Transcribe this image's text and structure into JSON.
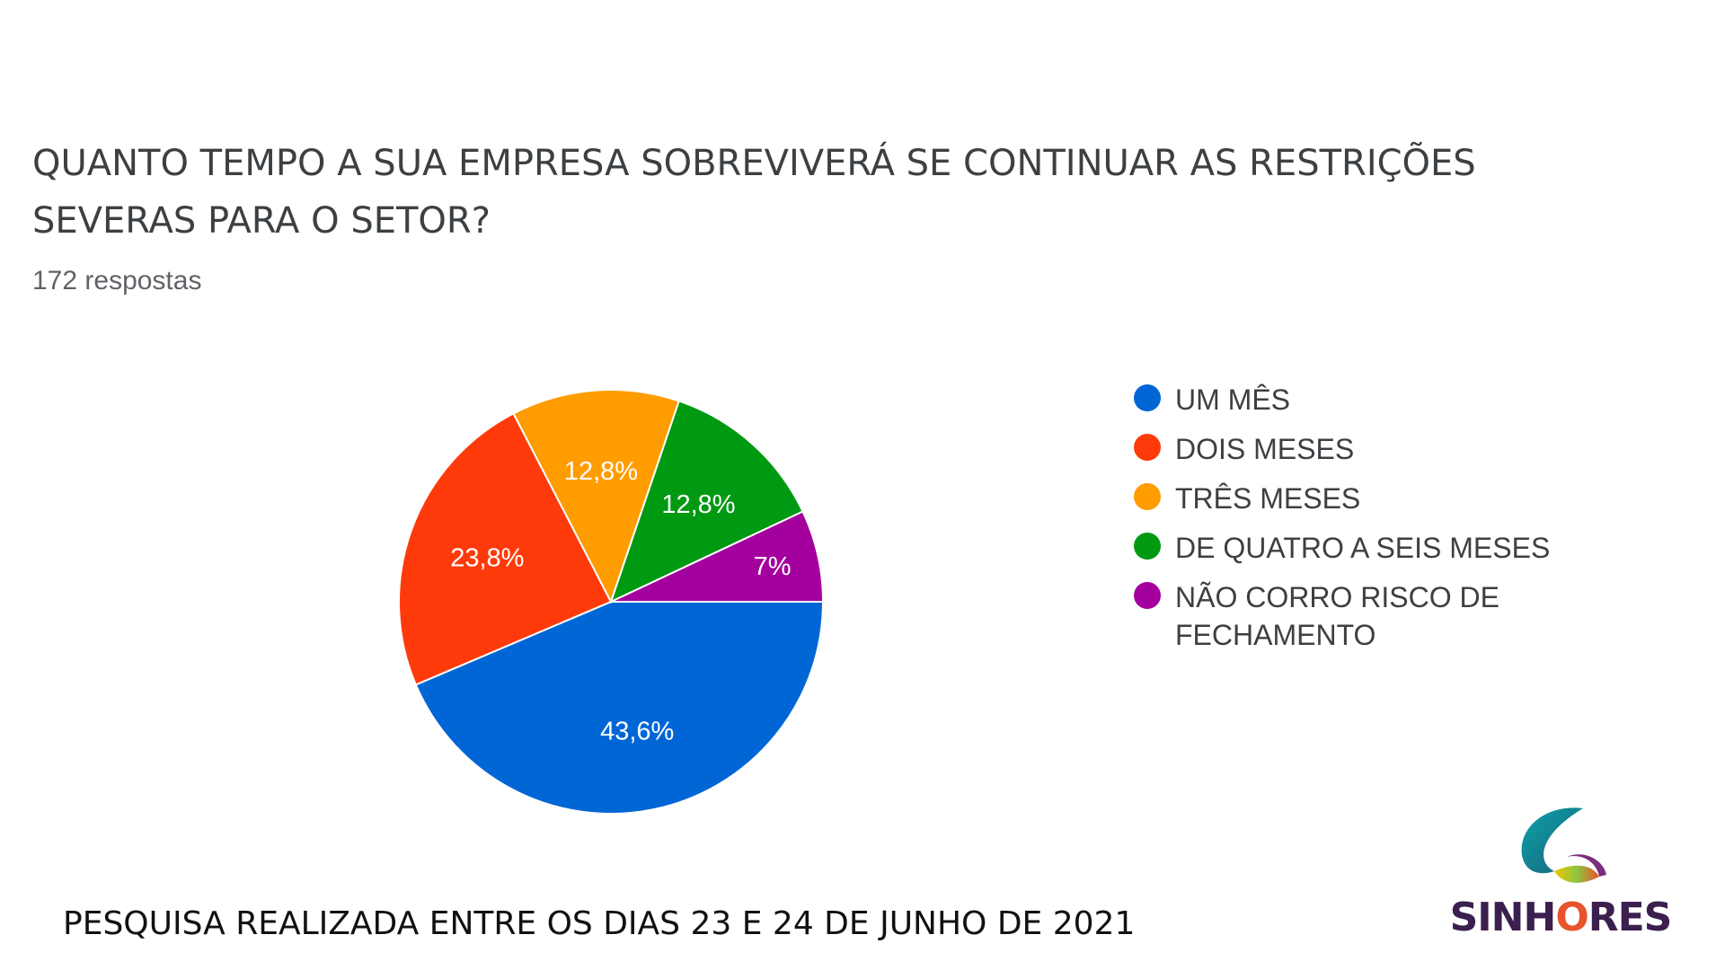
{
  "title": "QUANTO TEMPO A SUA EMPRESA SOBREVIVERÁ SE CONTINUAR AS RESTRIÇÕES SEVERAS PARA O SETOR?",
  "responses_label": "172 respostas",
  "footer": "PESQUISA REALIZADA ENTRE OS DIAS 23 E 24 DE JUNHO DE 2021",
  "logo": {
    "name": "SINHORES"
  },
  "chart_data": {
    "type": "pie",
    "title": "QUANTO TEMPO A SUA EMPRESA SOBREVIVERÁ SE CONTINUAR AS RESTRIÇÕES SEVERAS PARA O SETOR?",
    "slices": [
      {
        "label": "UM MÊS",
        "value": 43.6,
        "display": "43,6%",
        "color": "#0066d6"
      },
      {
        "label": "DOIS MESES",
        "value": 23.8,
        "display": "23,8%",
        "color": "#ff3a0a"
      },
      {
        "label": "TRÊS MESES",
        "value": 12.8,
        "display": "12,8%",
        "color": "#ff9c00"
      },
      {
        "label": "DE QUATRO A SEIS MESES",
        "value": 12.8,
        "display": "12,8%",
        "color": "#009912"
      },
      {
        "label": "NÃO CORRO RISCO DE FECHAMENTO",
        "value": 7,
        "display": "7%",
        "color": "#a4009e"
      }
    ],
    "legend_position": "right"
  }
}
